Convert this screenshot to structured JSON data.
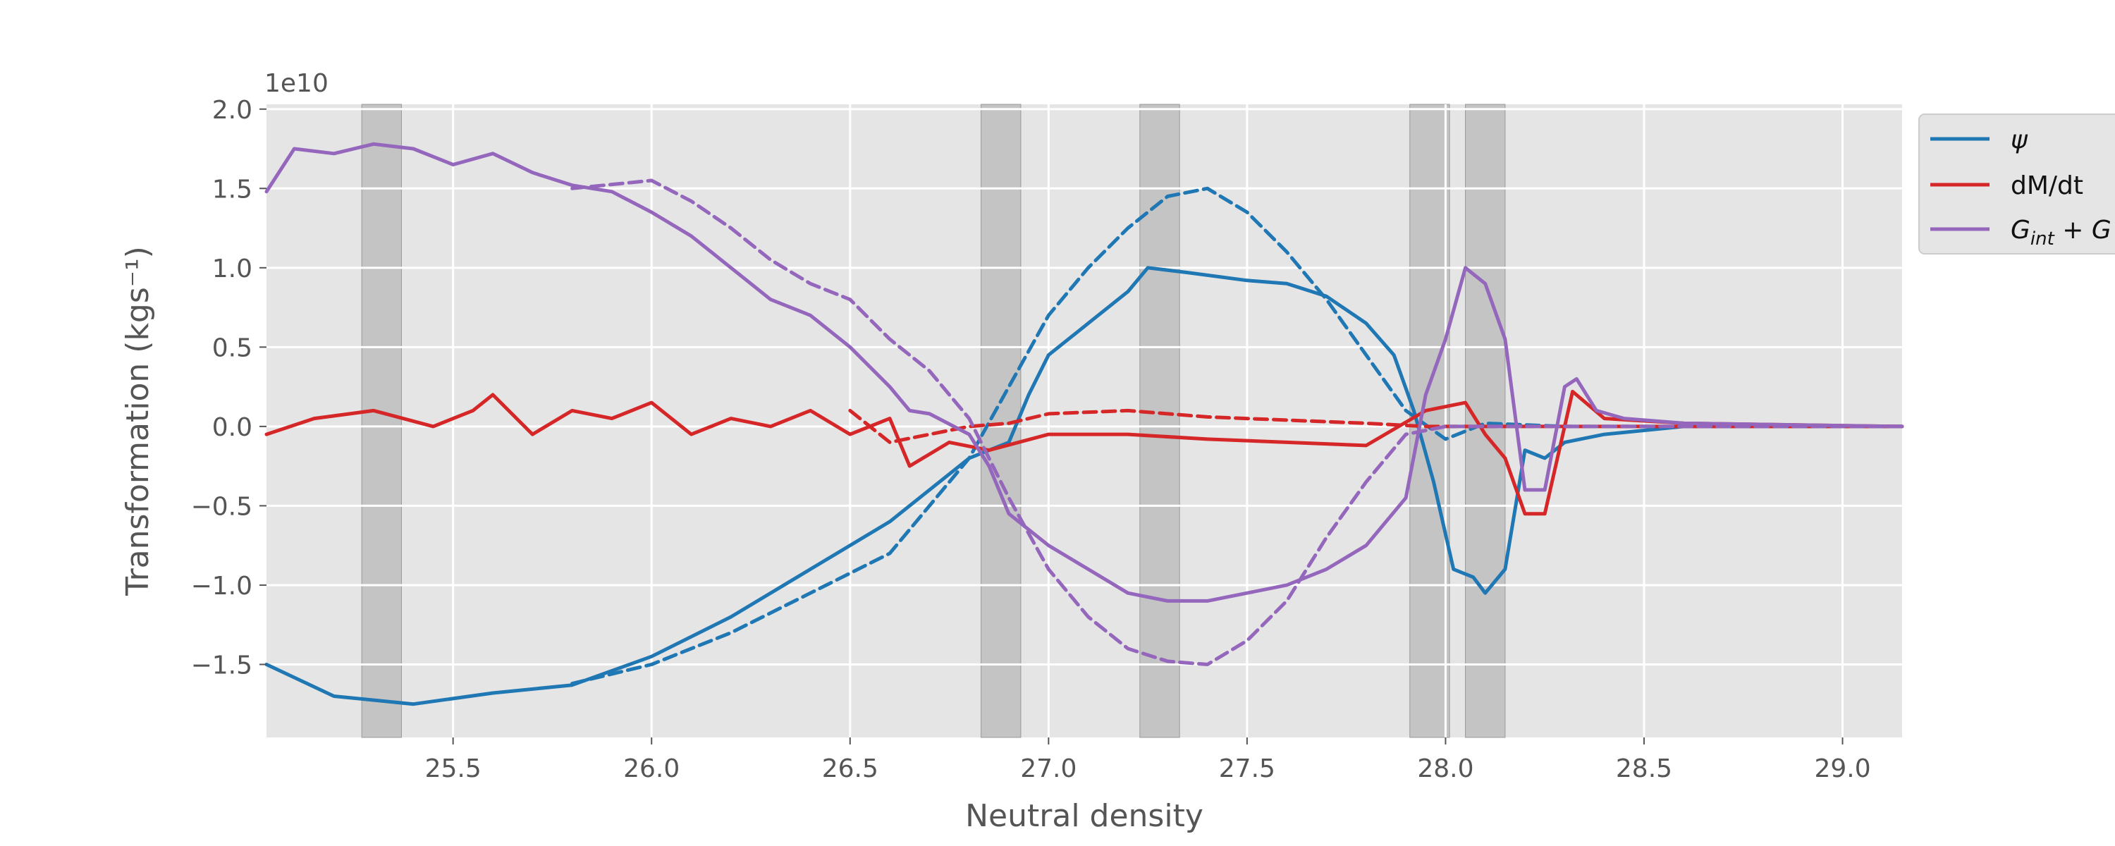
{
  "chart_data": {
    "type": "line",
    "xlabel": "Neutral density",
    "ylabel": "Transformation (kgs⁻¹)",
    "offset_label": "1e10",
    "xlim": [
      25.03,
      29.15
    ],
    "ylim": [
      -1.96,
      2.03
    ],
    "xticks": [
      25.5,
      26.0,
      26.5,
      27.0,
      27.5,
      28.0,
      28.5,
      29.0
    ],
    "xtick_labels": [
      "25.5",
      "26.0",
      "26.5",
      "27.0",
      "27.5",
      "28.0",
      "28.5",
      "29.0"
    ],
    "yticks": [
      -1.5,
      -1.0,
      -0.5,
      0.0,
      0.5,
      1.0,
      1.5,
      2.0
    ],
    "ytick_labels": [
      "−1.5",
      "−1.0",
      "−0.5",
      "0.0",
      "0.5",
      "1.0",
      "1.5",
      "2.0"
    ],
    "grid": true,
    "legend_placement": "outside-top-right",
    "colors": {
      "psi": "#1f77b4",
      "dmdt": "#d62728",
      "g": "#9467bd",
      "band": "#aaaaaa",
      "background": "#e5e5e5"
    },
    "shaded_bands": [
      [
        25.27,
        25.37
      ],
      [
        26.83,
        26.93
      ],
      [
        27.23,
        27.33
      ],
      [
        27.91,
        28.01
      ],
      [
        28.05,
        28.15
      ]
    ],
    "series": [
      {
        "name": "ψ",
        "color": "#1f77b4",
        "style": "solid",
        "x": [
          25.03,
          25.2,
          25.4,
          25.6,
          25.8,
          26.0,
          26.2,
          26.4,
          26.6,
          26.8,
          26.85,
          26.9,
          26.95,
          27.0,
          27.1,
          27.2,
          27.25,
          27.35,
          27.5,
          27.6,
          27.7,
          27.8,
          27.87,
          27.92,
          27.97,
          28.02,
          28.07,
          28.1,
          28.15,
          28.2,
          28.25,
          28.3,
          28.4,
          28.6,
          29.15
        ],
        "y": [
          -1.5,
          -1.7,
          -1.75,
          -1.68,
          -1.63,
          -1.45,
          -1.2,
          -0.9,
          -0.6,
          -0.2,
          -0.15,
          -0.1,
          0.2,
          0.45,
          0.65,
          0.85,
          1.0,
          0.97,
          0.92,
          0.9,
          0.82,
          0.65,
          0.45,
          0.1,
          -0.35,
          -0.9,
          -0.95,
          -1.05,
          -0.9,
          -0.15,
          -0.2,
          -0.1,
          -0.05,
          0.0,
          0.0
        ]
      },
      {
        "name": "ψ (dashed)",
        "color": "#1f77b4",
        "style": "dashed",
        "x": [
          25.8,
          26.0,
          26.2,
          26.4,
          26.6,
          26.8,
          26.9,
          27.0,
          27.1,
          27.2,
          27.3,
          27.4,
          27.5,
          27.6,
          27.7,
          27.8,
          27.9,
          28.0,
          28.1,
          28.3,
          28.6,
          29.15
        ],
        "y": [
          -1.62,
          -1.5,
          -1.3,
          -1.05,
          -0.8,
          -0.2,
          0.25,
          0.7,
          1.0,
          1.25,
          1.45,
          1.5,
          1.35,
          1.1,
          0.8,
          0.45,
          0.1,
          -0.08,
          0.02,
          0.0,
          0.0,
          0.0
        ]
      },
      {
        "name": "dM/dt",
        "color": "#d62728",
        "style": "solid",
        "x": [
          25.03,
          25.15,
          25.3,
          25.45,
          25.55,
          25.6,
          25.7,
          25.8,
          25.9,
          26.0,
          26.1,
          26.2,
          26.3,
          26.4,
          26.5,
          26.6,
          26.65,
          26.75,
          26.85,
          27.0,
          27.2,
          27.4,
          27.6,
          27.8,
          27.95,
          28.05,
          28.1,
          28.15,
          28.2,
          28.25,
          28.32,
          28.4,
          28.6,
          29.15
        ],
        "y": [
          -0.05,
          0.05,
          0.1,
          0.0,
          0.1,
          0.2,
          -0.05,
          0.1,
          0.05,
          0.15,
          -0.05,
          0.05,
          0.0,
          0.1,
          -0.05,
          0.05,
          -0.25,
          -0.1,
          -0.15,
          -0.05,
          -0.05,
          -0.08,
          -0.1,
          -0.12,
          0.1,
          0.15,
          -0.05,
          -0.2,
          -0.55,
          -0.55,
          0.22,
          0.05,
          0.02,
          0.0
        ]
      },
      {
        "name": "dM/dt (dashed)",
        "color": "#d62728",
        "style": "dashed",
        "x": [
          26.5,
          26.6,
          26.7,
          26.8,
          26.9,
          27.0,
          27.2,
          27.4,
          27.6,
          27.8,
          27.95,
          28.1,
          28.3,
          28.6,
          29.15
        ],
        "y": [
          0.1,
          -0.1,
          -0.05,
          0.0,
          0.02,
          0.08,
          0.1,
          0.06,
          0.04,
          0.02,
          0.0,
          0.0,
          0.0,
          0.0,
          0.0
        ]
      },
      {
        "name": "G_int + G",
        "color": "#9467bd",
        "style": "solid",
        "x": [
          25.03,
          25.1,
          25.2,
          25.3,
          25.4,
          25.5,
          25.6,
          25.7,
          25.8,
          25.9,
          26.0,
          26.1,
          26.2,
          26.3,
          26.4,
          26.5,
          26.6,
          26.65,
          26.7,
          26.8,
          26.85,
          26.9,
          27.0,
          27.1,
          27.2,
          27.3,
          27.4,
          27.5,
          27.6,
          27.7,
          27.8,
          27.9,
          27.95,
          28.0,
          28.05,
          28.1,
          28.15,
          28.2,
          28.25,
          28.3,
          28.33,
          28.38,
          28.45,
          28.6,
          29.15
        ],
        "y": [
          1.48,
          1.75,
          1.72,
          1.78,
          1.75,
          1.65,
          1.72,
          1.6,
          1.52,
          1.48,
          1.35,
          1.2,
          1.0,
          0.8,
          0.7,
          0.5,
          0.25,
          0.1,
          0.08,
          -0.05,
          -0.25,
          -0.55,
          -0.75,
          -0.9,
          -1.05,
          -1.1,
          -1.1,
          -1.05,
          -1.0,
          -0.9,
          -0.75,
          -0.45,
          0.2,
          0.55,
          1.0,
          0.9,
          0.55,
          -0.4,
          -0.4,
          0.25,
          0.3,
          0.1,
          0.05,
          0.02,
          0.0
        ]
      },
      {
        "name": "G_int + G (dashed)",
        "color": "#9467bd",
        "style": "dashed",
        "x": [
          25.8,
          26.0,
          26.1,
          26.2,
          26.3,
          26.4,
          26.5,
          26.6,
          26.7,
          26.8,
          26.9,
          27.0,
          27.1,
          27.2,
          27.3,
          27.4,
          27.5,
          27.6,
          27.7,
          27.8,
          27.9,
          28.0,
          28.05,
          28.1,
          28.3,
          28.6,
          29.15
        ],
        "y": [
          1.5,
          1.55,
          1.42,
          1.25,
          1.05,
          0.9,
          0.8,
          0.55,
          0.35,
          0.05,
          -0.45,
          -0.9,
          -1.2,
          -1.4,
          -1.48,
          -1.5,
          -1.35,
          -1.1,
          -0.7,
          -0.35,
          -0.05,
          0.0,
          0.0,
          0.0,
          0.0,
          0.0,
          0.0
        ]
      }
    ],
    "legend": [
      {
        "label": "ψ",
        "color": "#1f77b4"
      },
      {
        "label": "dM/dt",
        "color": "#d62728"
      },
      {
        "label": "G_int + G",
        "color": "#9467bd"
      }
    ]
  }
}
